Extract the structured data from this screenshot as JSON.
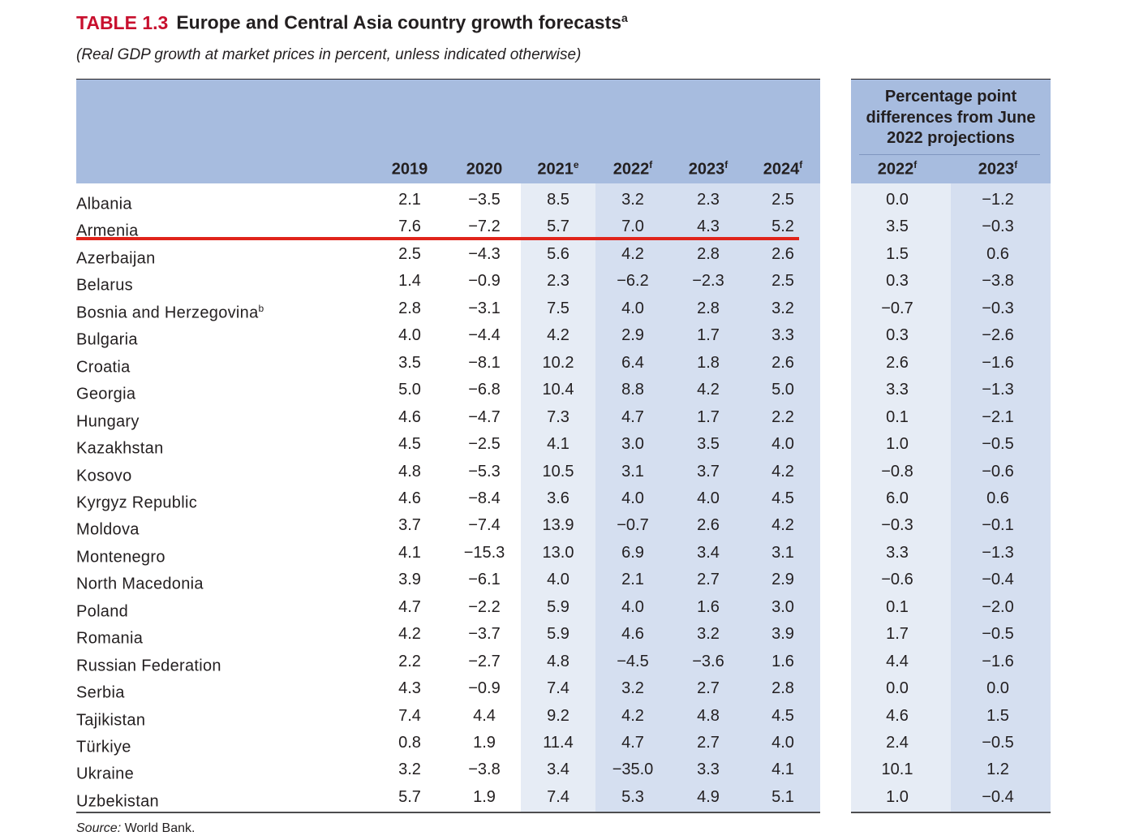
{
  "title": {
    "label": "TABLE 1.3",
    "text": "Europe and Central Asia country growth forecasts",
    "sup": "a"
  },
  "subtitle": "(Real GDP growth at market prices in percent, unless indicated otherwise)",
  "columns": [
    {
      "year": "2019",
      "sup": ""
    },
    {
      "year": "2020",
      "sup": ""
    },
    {
      "year": "2021",
      "sup": "e"
    },
    {
      "year": "2022",
      "sup": "f"
    },
    {
      "year": "2023",
      "sup": "f"
    },
    {
      "year": "2024",
      "sup": "f"
    }
  ],
  "diff_header": "Percentage point differences from June 2022 projections",
  "diff_columns": [
    {
      "year": "2022",
      "sup": "f"
    },
    {
      "year": "2023",
      "sup": "f"
    }
  ],
  "rows": [
    {
      "country": "Albania",
      "sup": "",
      "values": [
        "2.1",
        "−3.5",
        "8.5",
        "3.2",
        "2.3",
        "2.5"
      ],
      "diffs": [
        "0.0",
        "−1.2"
      ]
    },
    {
      "country": "Armenia",
      "sup": "",
      "values": [
        "7.6",
        "−7.2",
        "5.7",
        "7.0",
        "4.3",
        "5.2"
      ],
      "diffs": [
        "3.5",
        "−0.3"
      ]
    },
    {
      "country": "Azerbaijan",
      "sup": "",
      "values": [
        "2.5",
        "−4.3",
        "5.6",
        "4.2",
        "2.8",
        "2.6"
      ],
      "diffs": [
        "1.5",
        "0.6"
      ]
    },
    {
      "country": "Belarus",
      "sup": "",
      "values": [
        "1.4",
        "−0.9",
        "2.3",
        "−6.2",
        "−2.3",
        "2.5"
      ],
      "diffs": [
        "0.3",
        "−3.8"
      ]
    },
    {
      "country": "Bosnia and Herzegovina",
      "sup": "b",
      "values": [
        "2.8",
        "−3.1",
        "7.5",
        "4.0",
        "2.8",
        "3.2"
      ],
      "diffs": [
        "−0.7",
        "−0.3"
      ]
    },
    {
      "country": "Bulgaria",
      "sup": "",
      "values": [
        "4.0",
        "−4.4",
        "4.2",
        "2.9",
        "1.7",
        "3.3"
      ],
      "diffs": [
        "0.3",
        "−2.6"
      ]
    },
    {
      "country": "Croatia",
      "sup": "",
      "values": [
        "3.5",
        "−8.1",
        "10.2",
        "6.4",
        "1.8",
        "2.6"
      ],
      "diffs": [
        "2.6",
        "−1.6"
      ]
    },
    {
      "country": "Georgia",
      "sup": "",
      "values": [
        "5.0",
        "−6.8",
        "10.4",
        "8.8",
        "4.2",
        "5.0"
      ],
      "diffs": [
        "3.3",
        "−1.3"
      ]
    },
    {
      "country": "Hungary",
      "sup": "",
      "values": [
        "4.6",
        "−4.7",
        "7.3",
        "4.7",
        "1.7",
        "2.2"
      ],
      "diffs": [
        "0.1",
        "−2.1"
      ]
    },
    {
      "country": "Kazakhstan",
      "sup": "",
      "values": [
        "4.5",
        "−2.5",
        "4.1",
        "3.0",
        "3.5",
        "4.0"
      ],
      "diffs": [
        "1.0",
        "−0.5"
      ]
    },
    {
      "country": "Kosovo",
      "sup": "",
      "values": [
        "4.8",
        "−5.3",
        "10.5",
        "3.1",
        "3.7",
        "4.2"
      ],
      "diffs": [
        "−0.8",
        "−0.6"
      ]
    },
    {
      "country": "Kyrgyz Republic",
      "sup": "",
      "values": [
        "4.6",
        "−8.4",
        "3.6",
        "4.0",
        "4.0",
        "4.5"
      ],
      "diffs": [
        "6.0",
        "0.6"
      ]
    },
    {
      "country": "Moldova",
      "sup": "",
      "values": [
        "3.7",
        "−7.4",
        "13.9",
        "−0.7",
        "2.6",
        "4.2"
      ],
      "diffs": [
        "−0.3",
        "−0.1"
      ]
    },
    {
      "country": "Montenegro",
      "sup": "",
      "values": [
        "4.1",
        "−15.3",
        "13.0",
        "6.9",
        "3.4",
        "3.1"
      ],
      "diffs": [
        "3.3",
        "−1.3"
      ]
    },
    {
      "country": "North Macedonia",
      "sup": "",
      "values": [
        "3.9",
        "−6.1",
        "4.0",
        "2.1",
        "2.7",
        "2.9"
      ],
      "diffs": [
        "−0.6",
        "−0.4"
      ]
    },
    {
      "country": "Poland",
      "sup": "",
      "values": [
        "4.7",
        "−2.2",
        "5.9",
        "4.0",
        "1.6",
        "3.0"
      ],
      "diffs": [
        "0.1",
        "−2.0"
      ]
    },
    {
      "country": "Romania",
      "sup": "",
      "values": [
        "4.2",
        "−3.7",
        "5.9",
        "4.6",
        "3.2",
        "3.9"
      ],
      "diffs": [
        "1.7",
        "−0.5"
      ]
    },
    {
      "country": "Russian Federation",
      "sup": "",
      "values": [
        "2.2",
        "−2.7",
        "4.8",
        "−4.5",
        "−3.6",
        "1.6"
      ],
      "diffs": [
        "4.4",
        "−1.6"
      ]
    },
    {
      "country": "Serbia",
      "sup": "",
      "values": [
        "4.3",
        "−0.9",
        "7.4",
        "3.2",
        "2.7",
        "2.8"
      ],
      "diffs": [
        "0.0",
        "0.0"
      ]
    },
    {
      "country": "Tajikistan",
      "sup": "",
      "values": [
        "7.4",
        "4.4",
        "9.2",
        "4.2",
        "4.8",
        "4.5"
      ],
      "diffs": [
        "4.6",
        "1.5"
      ]
    },
    {
      "country": "Türkiye",
      "sup": "",
      "values": [
        "0.8",
        "1.9",
        "11.4",
        "4.7",
        "2.7",
        "4.0"
      ],
      "diffs": [
        "2.4",
        "−0.5"
      ]
    },
    {
      "country": "Ukraine",
      "sup": "",
      "values": [
        "3.2",
        "−3.8",
        "3.4",
        "−35.0",
        "3.3",
        "4.1"
      ],
      "diffs": [
        "10.1",
        "1.2"
      ]
    },
    {
      "country": "Uzbekistan",
      "sup": "",
      "values": [
        "5.7",
        "1.9",
        "7.4",
        "5.3",
        "4.9",
        "5.1"
      ],
      "diffs": [
        "1.0",
        "−0.4"
      ]
    }
  ],
  "source": {
    "label": "Source:",
    "text": " World Bank."
  },
  "colors": {
    "title_red": "#c8102e",
    "header_blue": "#a7bcdf",
    "band_light": "#e6ecf5",
    "band_mid": "#d5dff0",
    "highlight_red": "#e0241b"
  }
}
